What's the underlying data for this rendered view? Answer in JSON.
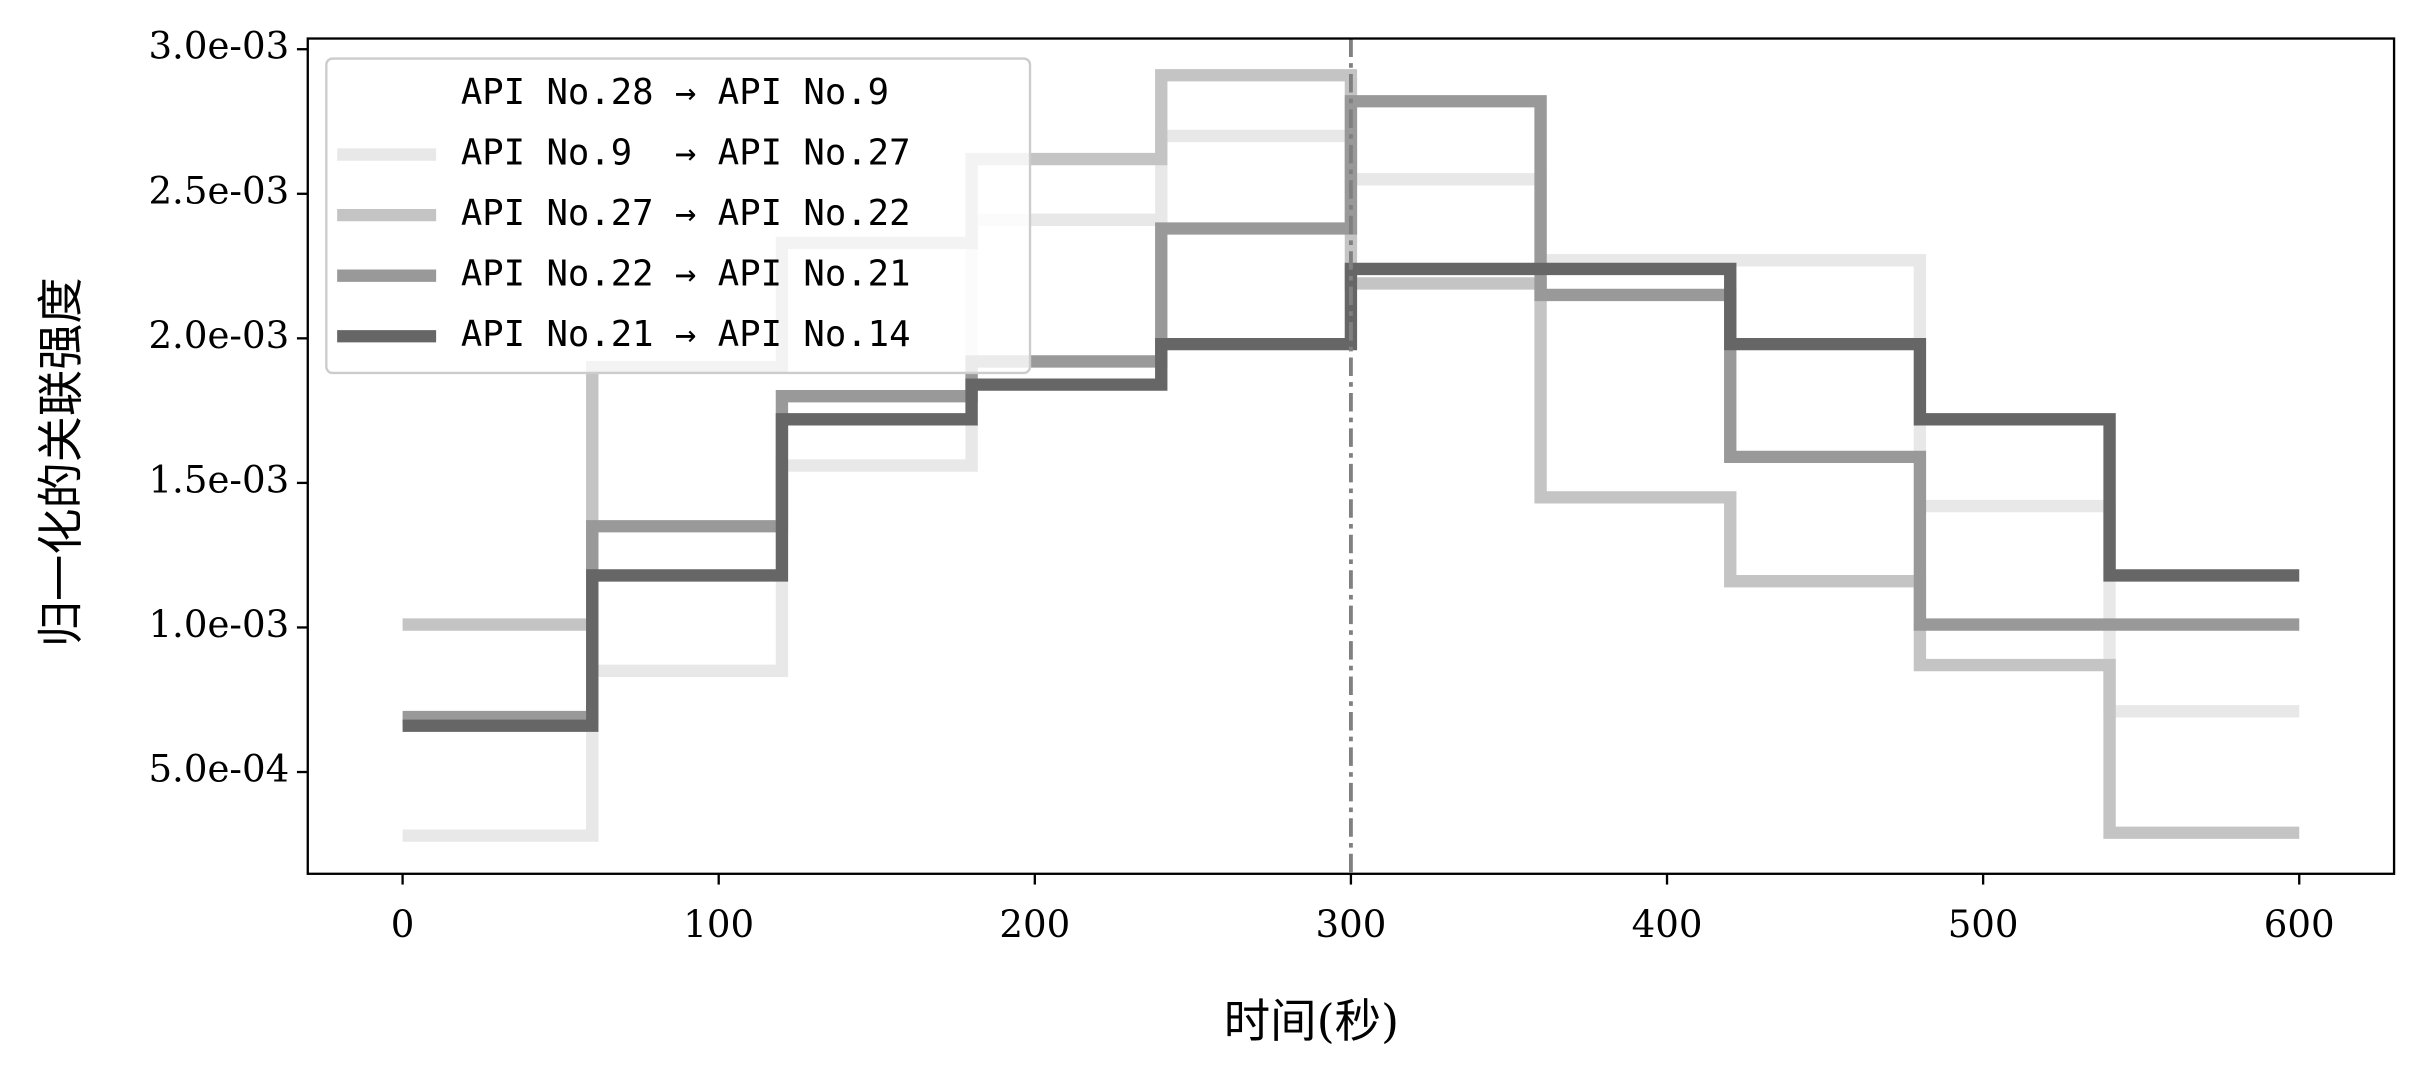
{
  "chart_data": {
    "type": "line",
    "step": "post",
    "xlabel": "时间(秒)",
    "ylabel": "归一化的关联强度",
    "x": [
      0,
      60,
      120,
      180,
      240,
      300,
      360,
      420,
      480,
      540,
      600
    ],
    "series": [
      {
        "name": "API No.28 → API No.9",
        "color": "#ffffff",
        "values": [
          null,
          null,
          null,
          null,
          null,
          null,
          null,
          null,
          null,
          null,
          null
        ]
      },
      {
        "name": "API No.9  → API No.27",
        "color": "#e8e8e8",
        "values": [
          0.00028,
          0.00085,
          0.00156,
          0.00241,
          0.0027,
          0.00255,
          0.00227,
          0.00227,
          0.00142,
          0.00071,
          0.00071
        ]
      },
      {
        "name": "API No.27 → API No.22",
        "color": "#c4c4c4",
        "values": [
          0.00101,
          0.0019,
          0.00233,
          0.00262,
          0.00291,
          0.00219,
          0.00145,
          0.00116,
          0.00087,
          0.00029,
          0.00029
        ]
      },
      {
        "name": "API No.22 → API No.21",
        "color": "#999999",
        "values": [
          0.00069,
          0.00135,
          0.0018,
          0.00192,
          0.00238,
          0.00282,
          0.00215,
          0.00159,
          0.00101,
          0.00101,
          0.00101
        ]
      },
      {
        "name": "API No.21 → API No.14",
        "color": "#666666",
        "values": [
          0.00066,
          0.00118,
          0.00172,
          0.00184,
          0.00198,
          0.00224,
          0.00224,
          0.00198,
          0.00172,
          0.00118,
          0.00118
        ]
      }
    ],
    "vline": 300,
    "xlim": [
      -30,
      630
    ],
    "xticks": [
      0,
      100,
      200,
      300,
      400,
      500,
      600
    ],
    "ylim": [
      0.000148,
      0.003037
    ],
    "yticks": [
      {
        "value": 0.0005,
        "label": "5.0e-04"
      },
      {
        "value": 0.001,
        "label": "1.0e-03"
      },
      {
        "value": 0.0015,
        "label": "1.5e-03"
      },
      {
        "value": 0.002,
        "label": "2.0e-03"
      },
      {
        "value": 0.0025,
        "label": "2.5e-03"
      },
      {
        "value": 0.003,
        "label": "3.0e-03"
      }
    ],
    "legend": "upper left",
    "grid": false
  }
}
